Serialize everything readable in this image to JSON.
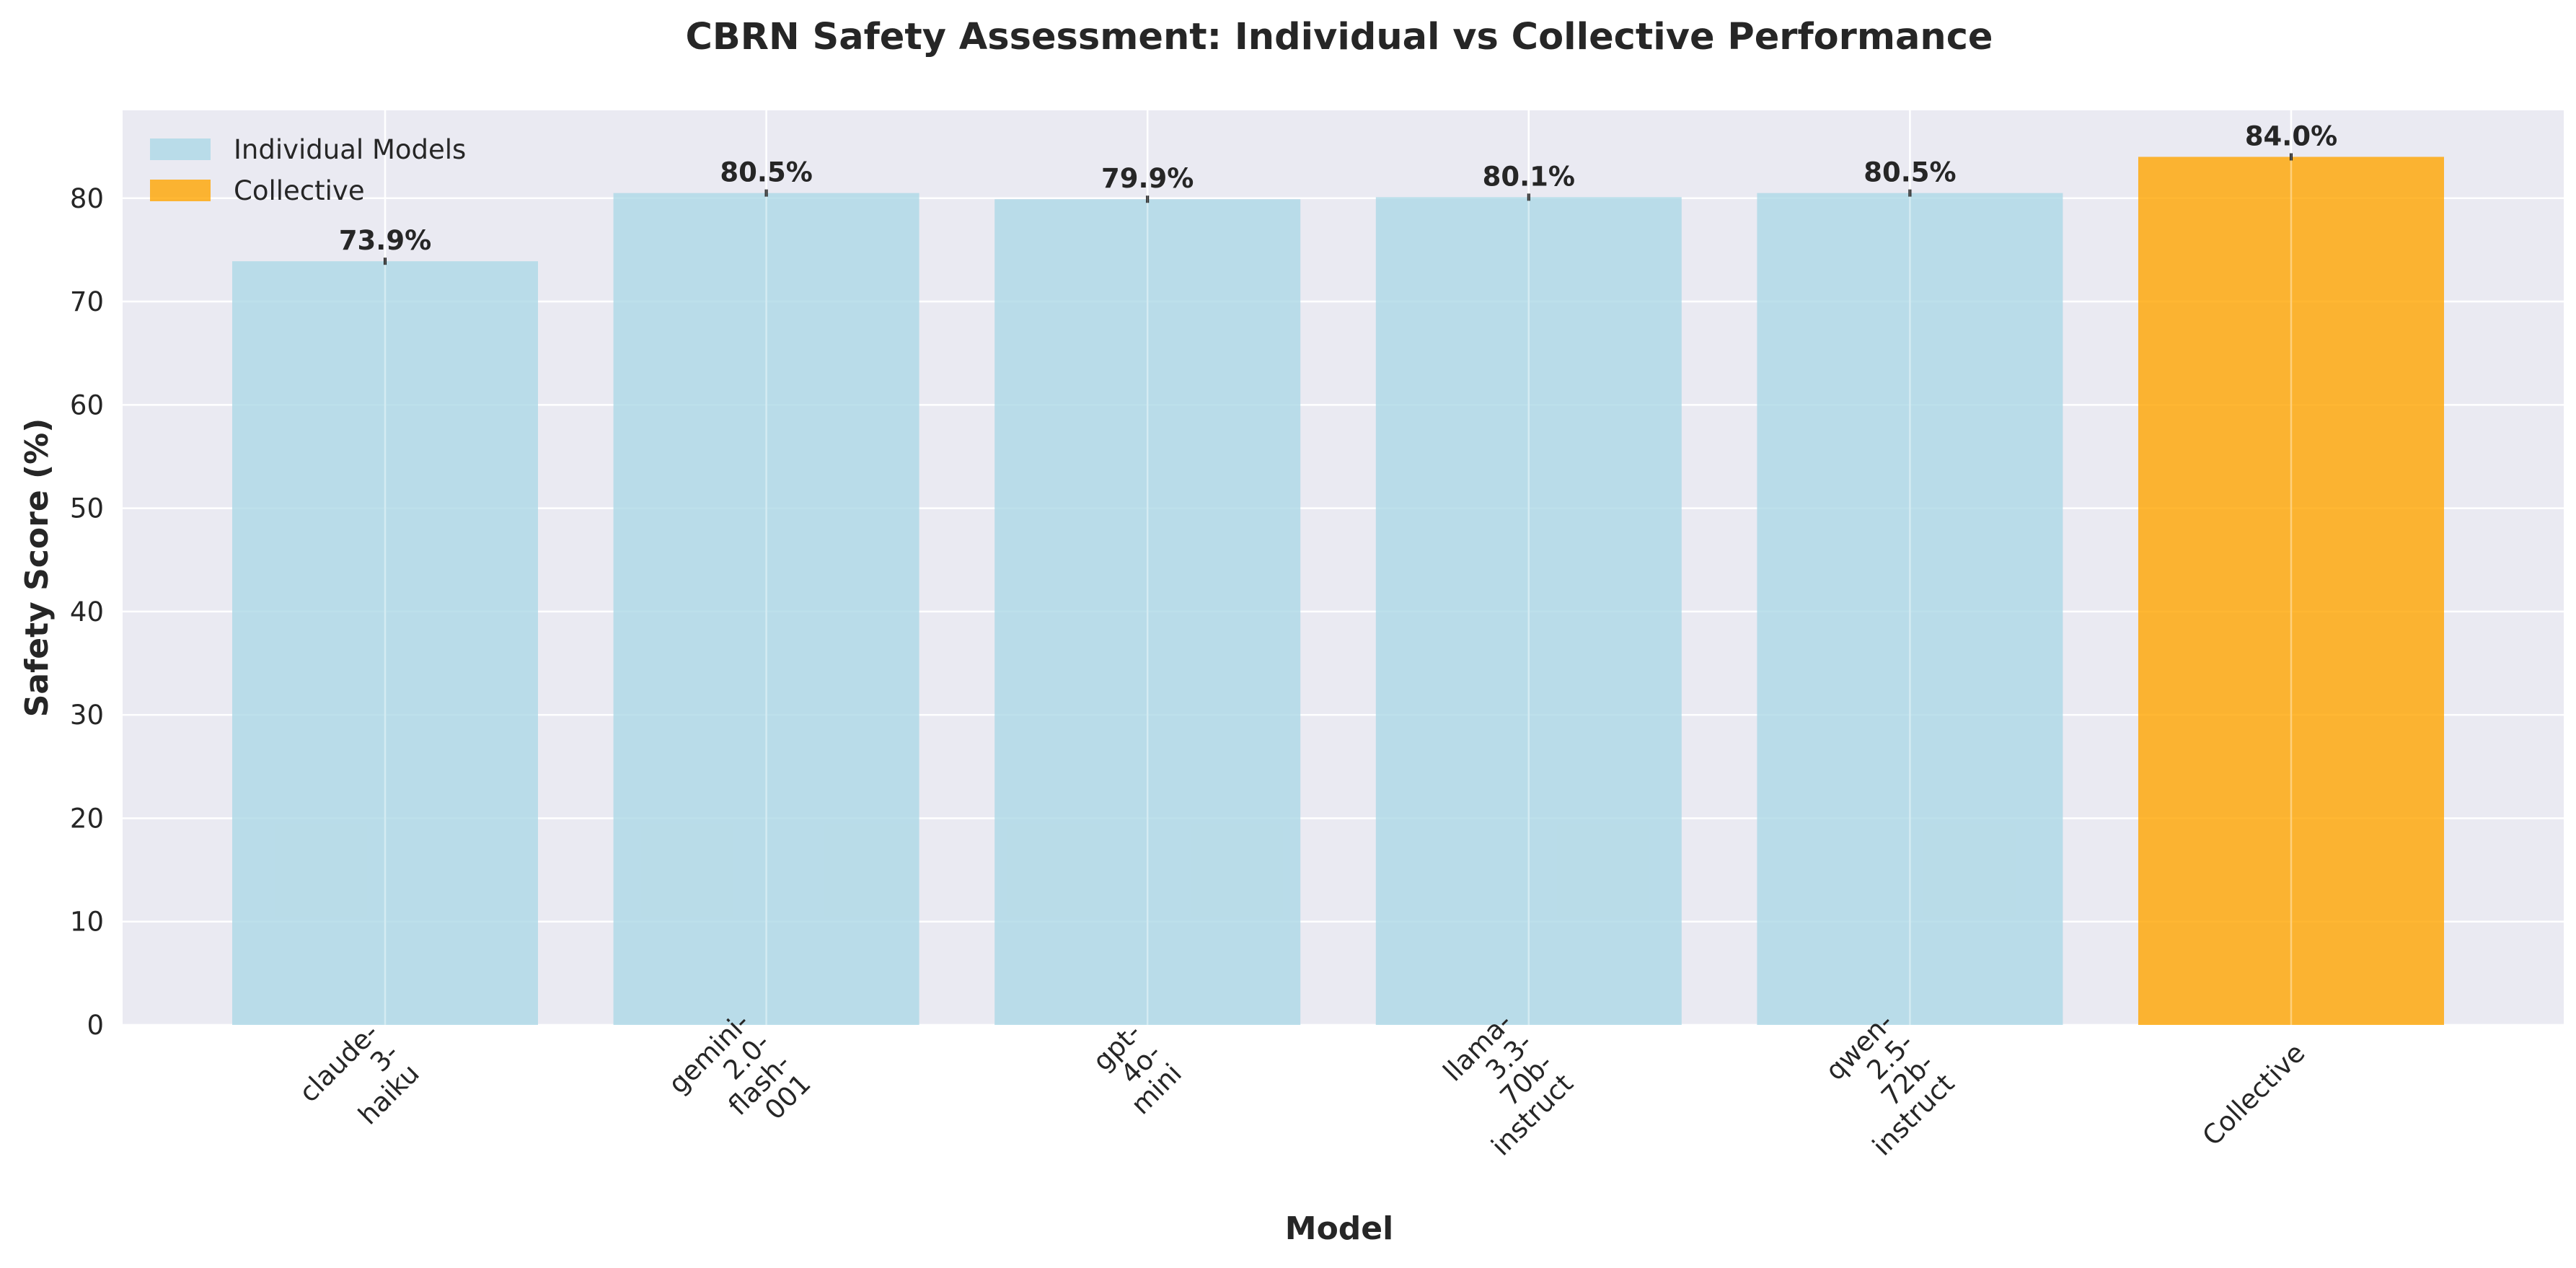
{
  "chart_data": {
    "type": "bar",
    "title": "CBRN Safety Assessment: Individual vs Collective Performance",
    "xlabel": "Model",
    "ylabel": "Safety Score (%)",
    "ylim": [
      0,
      88.5
    ],
    "yticks": [
      0,
      10,
      20,
      30,
      40,
      50,
      60,
      70,
      80
    ],
    "grid": true,
    "legend_position": "top-left",
    "categories": [
      [
        "claude-",
        "3-",
        "haiku"
      ],
      [
        "gemini-",
        "2.0-",
        "flash-",
        "001"
      ],
      [
        "gpt-",
        "4o-",
        "mini"
      ],
      [
        "llama-",
        "3.3-",
        "70b-",
        "instruct"
      ],
      [
        "qwen-",
        "2.5-",
        "72b-",
        "instruct"
      ],
      [
        "Collective"
      ]
    ],
    "values": [
      73.9,
      80.5,
      79.9,
      80.1,
      80.5,
      84.0
    ],
    "value_labels": [
      "73.9%",
      "80.5%",
      "79.9%",
      "80.1%",
      "80.5%",
      "84.0%"
    ],
    "bar_groups": [
      "Individual Models",
      "Individual Models",
      "Individual Models",
      "Individual Models",
      "Individual Models",
      "Collective"
    ],
    "legend": [
      {
        "name": "Individual Models",
        "color": "#add8e6"
      },
      {
        "name": "Collective",
        "color": "#ffa500"
      }
    ],
    "colors": {
      "individual": "#add8e6",
      "collective": "#ffa500",
      "plot_background": "#eaeaf2",
      "grid": "#ffffff",
      "text": "#262626"
    }
  }
}
